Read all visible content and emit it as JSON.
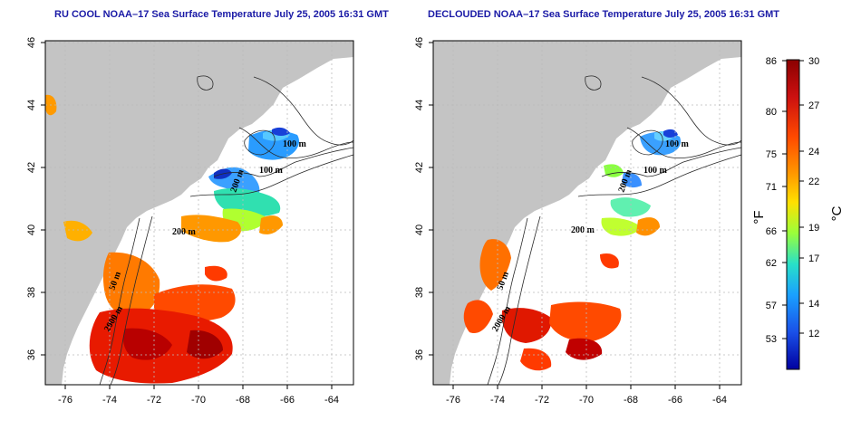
{
  "panels": [
    {
      "title": "RU COOL NOAA–17 Sea Surface Temperature July 25, 2005 16:31 GMT",
      "contour_labels": [
        "100 m",
        "100 m",
        "200 m",
        "200 m",
        "50 m",
        "2000 m"
      ]
    },
    {
      "title": "DECLOUDED NOAA–17 Sea Surface Temperature July 25, 2005 16:31 GMT",
      "contour_labels": [
        "100 m",
        "100 m",
        "200 m",
        "200 m",
        "50 m",
        "2000 m"
      ]
    }
  ],
  "axes": {
    "lon_ticks": [
      "-76",
      "-74",
      "-72",
      "-70",
      "-68",
      "-66",
      "-64"
    ],
    "lat_ticks": [
      "46",
      "44",
      "42",
      "40",
      "38",
      "36"
    ]
  },
  "colorbar": {
    "fahrenheit_unit": "°F",
    "celsius_unit": "°C",
    "fahrenheit_ticks": [
      "86",
      "80",
      "75",
      "71",
      "66",
      "62",
      "57",
      "53"
    ],
    "celsius_ticks": [
      "30",
      "27",
      "24",
      "22",
      "19",
      "17",
      "14",
      "12"
    ],
    "colors": [
      "#8b0000",
      "#cc1010",
      "#ff4a00",
      "#ff9a00",
      "#ffe000",
      "#9aff3a",
      "#28e0c8",
      "#1aa0ff",
      "#1a50e8",
      "#0000a0"
    ]
  }
}
